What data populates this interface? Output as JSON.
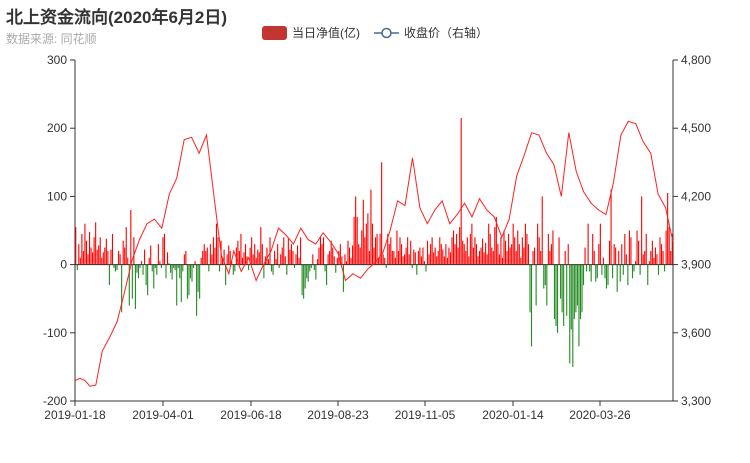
{
  "header": {
    "title": "北上资金流向(2020年6月2日)",
    "subtitle": "数据来源: 同花顺"
  },
  "legend": {
    "bar_label": "当日净值(亿)",
    "line_label": "收盘价（右轴）"
  },
  "colors": {
    "bar_positive": "#ff0000",
    "bar_negative": "#228b22",
    "line": "#ff2020",
    "legend_bar": "#c23531",
    "axis": "#333333"
  },
  "chart_data": {
    "type": "bar",
    "title": "北上资金流向(2020年6月2日)",
    "subtitle": "数据来源: 同花顺",
    "y_left": {
      "range": [
        -200,
        300
      ],
      "ticks": [
        "300",
        "200",
        "100",
        "0",
        "-100",
        "-200"
      ],
      "label": ""
    },
    "y_right": {
      "range": [
        3300,
        4800
      ],
      "ticks": [
        "4,800",
        "4,500",
        "4,200",
        "3,900",
        "3,600",
        "3,300"
      ],
      "label": ""
    },
    "x_tick_labels": [
      "2019-01-18",
      "2019-04-01",
      "2019-06-18",
      "2019-08-23",
      "2019-11-05",
      "2020-01-14",
      "2020-03-26"
    ],
    "grid": false,
    "legend_position": "top-center",
    "series": [
      {
        "name": "当日净值(亿)",
        "type": "bar",
        "axis": "left",
        "values": [
          55,
          -8,
          30,
          10,
          45,
          20,
          60,
          35,
          15,
          48,
          25,
          18,
          40,
          62,
          22,
          28,
          40,
          10,
          18,
          25,
          38,
          20,
          -30,
          22,
          45,
          -5,
          -10,
          -8,
          20,
          15,
          -70,
          35,
          25,
          55,
          10,
          -60,
          80,
          -50,
          40,
          -65,
          -12,
          -20,
          -5,
          5,
          -15,
          22,
          -30,
          -45,
          10,
          28,
          -10,
          -35,
          -5,
          -15,
          30,
          5,
          -5,
          40,
          45,
          -20,
          18,
          2,
          -12,
          -22,
          -5,
          -8,
          -60,
          -5,
          -20,
          -55,
          -10,
          15,
          20,
          -50,
          -45,
          -20,
          -25,
          -5,
          5,
          -75,
          -40,
          -50,
          10,
          20,
          30,
          20,
          25,
          -10,
          30,
          15,
          40,
          25,
          60,
          40,
          -10,
          35,
          10,
          22,
          -30,
          15,
          28,
          20,
          5,
          -15,
          -10,
          25,
          35,
          20,
          45,
          10,
          18,
          30,
          12,
          -8,
          25,
          40,
          15,
          30,
          10,
          22,
          18,
          55,
          30,
          -20,
          12,
          25,
          8,
          40,
          -10,
          -15,
          20,
          8,
          30,
          -5,
          15,
          25,
          40,
          12,
          -15,
          38,
          22,
          30,
          20,
          -5,
          15,
          28,
          10,
          40,
          -45,
          -50,
          -35,
          -20,
          -25,
          -10,
          -5,
          15,
          -8,
          -22,
          8,
          25,
          40,
          30,
          40,
          -10,
          -30,
          15,
          20,
          35,
          25,
          12,
          -12,
          10,
          20,
          30,
          12,
          -40,
          15,
          5,
          35,
          25,
          10,
          28,
          70,
          100,
          70,
          30,
          25,
          50,
          95,
          40,
          60,
          75,
          20,
          110,
          60,
          25,
          40,
          45,
          10,
          45,
          150,
          15,
          10,
          -5,
          45,
          30,
          40,
          20,
          20,
          10,
          50,
          20,
          40,
          30,
          12,
          15,
          25,
          40,
          15,
          35,
          -5,
          22,
          18,
          -15,
          20,
          25,
          12,
          25,
          5,
          -10,
          35,
          15,
          30,
          40,
          18,
          25,
          12,
          20,
          40,
          30,
          22,
          12,
          30,
          10,
          25,
          18,
          40,
          50,
          30,
          45,
          25,
          55,
          215,
          35,
          30,
          20,
          40,
          12,
          45,
          60,
          25,
          40,
          30,
          12,
          20,
          25,
          38,
          18,
          32,
          15,
          60,
          45,
          25,
          20,
          55,
          70,
          30,
          15,
          40,
          10,
          50,
          35,
          20,
          45,
          25,
          30,
          60,
          40,
          20,
          50,
          30,
          10,
          40,
          25,
          60,
          45,
          30,
          -70,
          -120,
          20,
          25,
          -60,
          60,
          40,
          20,
          100,
          -35,
          -30,
          -60,
          45,
          20,
          30,
          50,
          -80,
          -90,
          -100,
          40,
          -50,
          -70,
          -90,
          20,
          -75,
          30,
          -145,
          -95,
          -150,
          -80,
          -70,
          -60,
          -120,
          -80,
          -70,
          -30,
          25,
          -10,
          60,
          -10,
          -25,
          45,
          20,
          -25,
          -20,
          30,
          60,
          -15,
          10,
          -20,
          -35,
          -30,
          35,
          110,
          -20,
          30,
          25,
          -40,
          20,
          -25,
          30,
          -15,
          45,
          15,
          -30,
          50,
          40,
          -20,
          -10,
          5,
          50,
          35,
          -15,
          100,
          15,
          20,
          45,
          -30,
          5,
          20,
          35,
          10,
          25,
          15,
          -15,
          40,
          30,
          20,
          -10,
          50,
          105,
          55,
          20,
          45
        ],
        "note_none": ""
      },
      {
        "name": "收盘价（右轴）",
        "type": "line",
        "axis": "right",
        "points_by_index_fraction": [
          [
            0.0,
            3390
          ],
          [
            0.01,
            3400
          ],
          [
            0.02,
            3390
          ],
          [
            0.03,
            3365
          ],
          [
            0.042,
            3370
          ],
          [
            0.055,
            3520
          ],
          [
            0.07,
            3580
          ],
          [
            0.085,
            3650
          ],
          [
            0.1,
            3780
          ],
          [
            0.115,
            3920
          ],
          [
            0.13,
            4010
          ],
          [
            0.145,
            4080
          ],
          [
            0.16,
            4100
          ],
          [
            0.175,
            4060
          ],
          [
            0.19,
            4210
          ],
          [
            0.205,
            4280
          ],
          [
            0.22,
            4450
          ],
          [
            0.235,
            4460
          ],
          [
            0.25,
            4390
          ],
          [
            0.265,
            4470
          ],
          [
            0.28,
            4200
          ],
          [
            0.295,
            3940
          ],
          [
            0.31,
            3860
          ],
          [
            0.32,
            3960
          ],
          [
            0.335,
            3870
          ],
          [
            0.35,
            3930
          ],
          [
            0.365,
            3830
          ],
          [
            0.38,
            3900
          ],
          [
            0.395,
            3960
          ],
          [
            0.41,
            4060
          ],
          [
            0.425,
            4030
          ],
          [
            0.44,
            3990
          ],
          [
            0.455,
            4060
          ],
          [
            0.47,
            4010
          ],
          [
            0.485,
            3990
          ],
          [
            0.5,
            4040
          ],
          [
            0.515,
            4000
          ],
          [
            0.53,
            3950
          ],
          [
            0.545,
            3830
          ],
          [
            0.56,
            3860
          ],
          [
            0.575,
            3840
          ],
          [
            0.59,
            3880
          ],
          [
            0.605,
            3910
          ],
          [
            0.62,
            3950
          ],
          [
            0.635,
            4050
          ],
          [
            0.65,
            4180
          ],
          [
            0.665,
            4160
          ],
          [
            0.68,
            4370
          ],
          [
            0.695,
            4150
          ],
          [
            0.71,
            4080
          ],
          [
            0.725,
            4140
          ],
          [
            0.74,
            4180
          ],
          [
            0.755,
            4080
          ],
          [
            0.77,
            4120
          ],
          [
            0.785,
            4170
          ],
          [
            0.8,
            4110
          ],
          [
            0.815,
            4190
          ],
          [
            0.83,
            4140
          ],
          [
            0.845,
            4110
          ],
          [
            0.86,
            4020
          ],
          [
            0.875,
            4100
          ],
          [
            0.89,
            4290
          ],
          [
            0.905,
            4380
          ],
          [
            0.92,
            4480
          ],
          [
            0.935,
            4470
          ],
          [
            0.95,
            4390
          ],
          [
            0.965,
            4340
          ],
          [
            0.98,
            4200
          ],
          [
            0.995,
            4480
          ],
          [
            1.01,
            4310
          ],
          [
            1.025,
            4220
          ],
          [
            1.04,
            4170
          ],
          [
            1.055,
            4140
          ],
          [
            1.07,
            4120
          ],
          [
            1.085,
            4260
          ],
          [
            1.1,
            4470
          ],
          [
            1.115,
            4530
          ],
          [
            1.13,
            4520
          ],
          [
            1.145,
            4440
          ],
          [
            1.16,
            4390
          ],
          [
            1.175,
            4210
          ],
          [
            1.19,
            4150
          ],
          [
            1.205,
            4000
          ]
        ]
      }
    ]
  }
}
